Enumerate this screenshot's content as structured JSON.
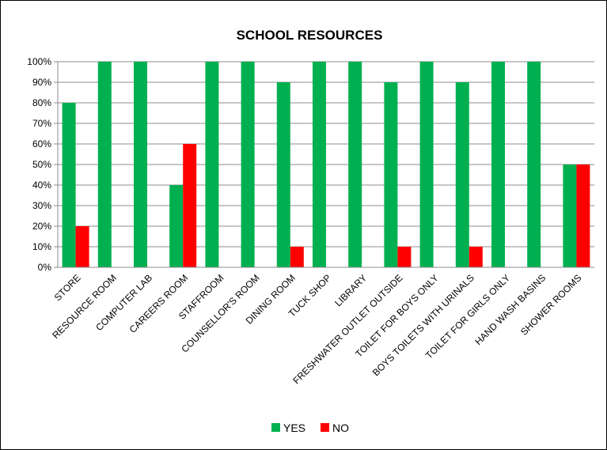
{
  "chart_data": {
    "type": "bar",
    "title": "SCHOOL RESOURCES",
    "categories": [
      "STORE",
      "RESOURCE ROOM",
      "COMPUTER LAB",
      "CAREERS ROOM",
      "STAFFROOM",
      "COUNSELLOR'S ROOM",
      "DINING ROOM",
      "TUCK SHOP",
      "LIBRARY",
      "FRESHWATER OUTLET OUTSIDE",
      "TOILET FOR BOYS ONLY",
      "BOYS TOILETS WITH URINALS",
      "TOILET FOR GIRLS ONLY",
      "HAND WASH BASINS",
      "SHOWER ROOMS"
    ],
    "series": [
      {
        "name": "YES",
        "color": "#00b050",
        "values": [
          80,
          100,
          100,
          40,
          100,
          100,
          90,
          100,
          100,
          90,
          100,
          90,
          100,
          100,
          50
        ]
      },
      {
        "name": "NO",
        "color": "#ff0000",
        "values": [
          20,
          0,
          0,
          60,
          0,
          0,
          10,
          0,
          0,
          10,
          0,
          10,
          0,
          0,
          50
        ]
      }
    ],
    "yticks": [
      "0%",
      "10%",
      "20%",
      "30%",
      "40%",
      "50%",
      "60%",
      "70%",
      "80%",
      "90%",
      "100%"
    ],
    "ylim": [
      0,
      100
    ],
    "grid": true,
    "legend_position": "bottom"
  }
}
